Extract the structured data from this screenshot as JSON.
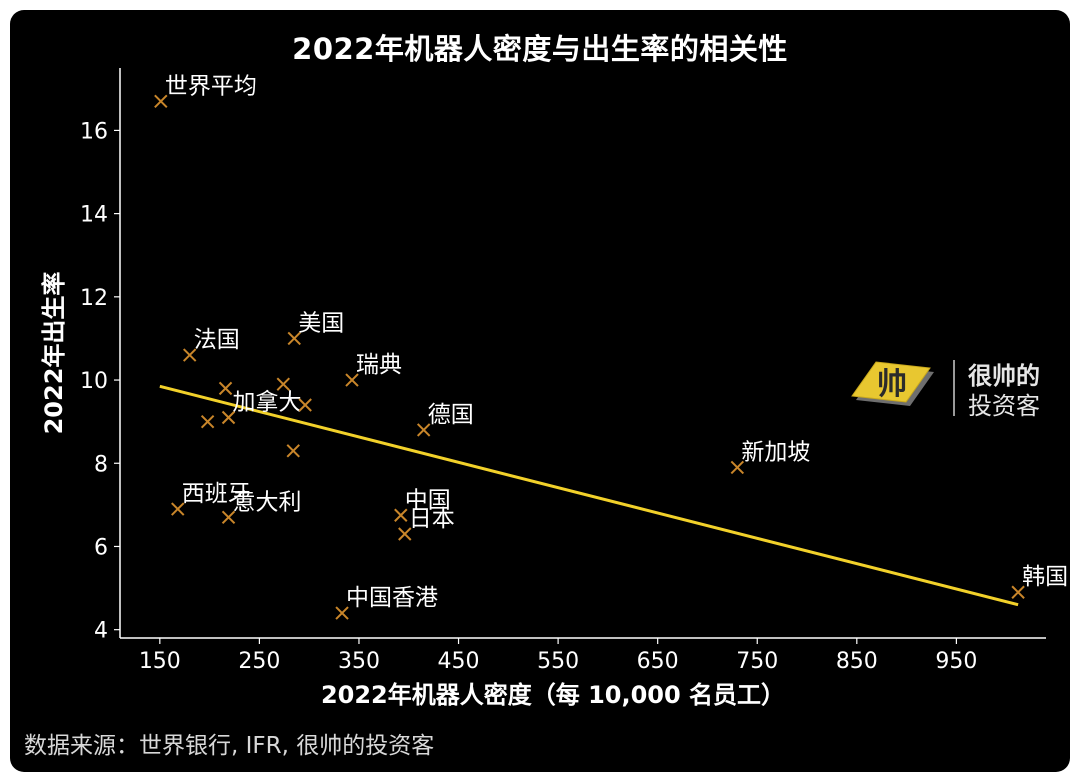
{
  "chart_data": {
    "type": "scatter",
    "title": "2022年机器人密度与出生率的相关性",
    "xlabel": "2022年机器人密度（每 10,000 名员工）",
    "ylabel": "2022年出生率",
    "xlim": [
      110,
      1040
    ],
    "ylim": [
      3.8,
      17.5
    ],
    "xticks": [
      150,
      250,
      350,
      450,
      550,
      650,
      750,
      850,
      950
    ],
    "yticks": [
      4,
      6,
      8,
      10,
      12,
      14,
      16
    ],
    "grid": false,
    "marker": "x",
    "marker_color": "#c9862a",
    "trendline_color": "#f2d12a",
    "trendline": {
      "x": [
        150,
        1012
      ],
      "y": [
        9.85,
        4.6
      ]
    },
    "points": [
      {
        "label": "世界平均",
        "x": 151,
        "y": 16.7
      },
      {
        "label": "法国",
        "x": 180,
        "y": 10.6
      },
      {
        "label": "美国",
        "x": 285,
        "y": 11.0
      },
      {
        "label": "瑞典",
        "x": 343,
        "y": 10.0
      },
      {
        "label": "",
        "x": 216,
        "y": 9.8
      },
      {
        "label": "",
        "x": 274,
        "y": 9.9
      },
      {
        "label": "加拿大",
        "x": 219,
        "y": 9.1
      },
      {
        "label": "",
        "x": 198,
        "y": 9.0
      },
      {
        "label": "",
        "x": 296,
        "y": 9.4
      },
      {
        "label": "",
        "x": 284,
        "y": 8.3
      },
      {
        "label": "德国",
        "x": 415,
        "y": 8.8
      },
      {
        "label": "新加坡",
        "x": 730,
        "y": 7.9
      },
      {
        "label": "西班牙",
        "x": 168,
        "y": 6.9
      },
      {
        "label": "意大利",
        "x": 219,
        "y": 6.7
      },
      {
        "label": "中国",
        "x": 392,
        "y": 6.75
      },
      {
        "label": "日本",
        "x": 396,
        "y": 6.3
      },
      {
        "label": "中国香港",
        "x": 333,
        "y": 4.4
      },
      {
        "label": "韩国",
        "x": 1012,
        "y": 4.9
      }
    ]
  },
  "source": "数据来源：世界银行, IFR, 很帅的投资客",
  "logo": {
    "mark": "帅",
    "line1": "很帅的",
    "line2": "投资客"
  }
}
